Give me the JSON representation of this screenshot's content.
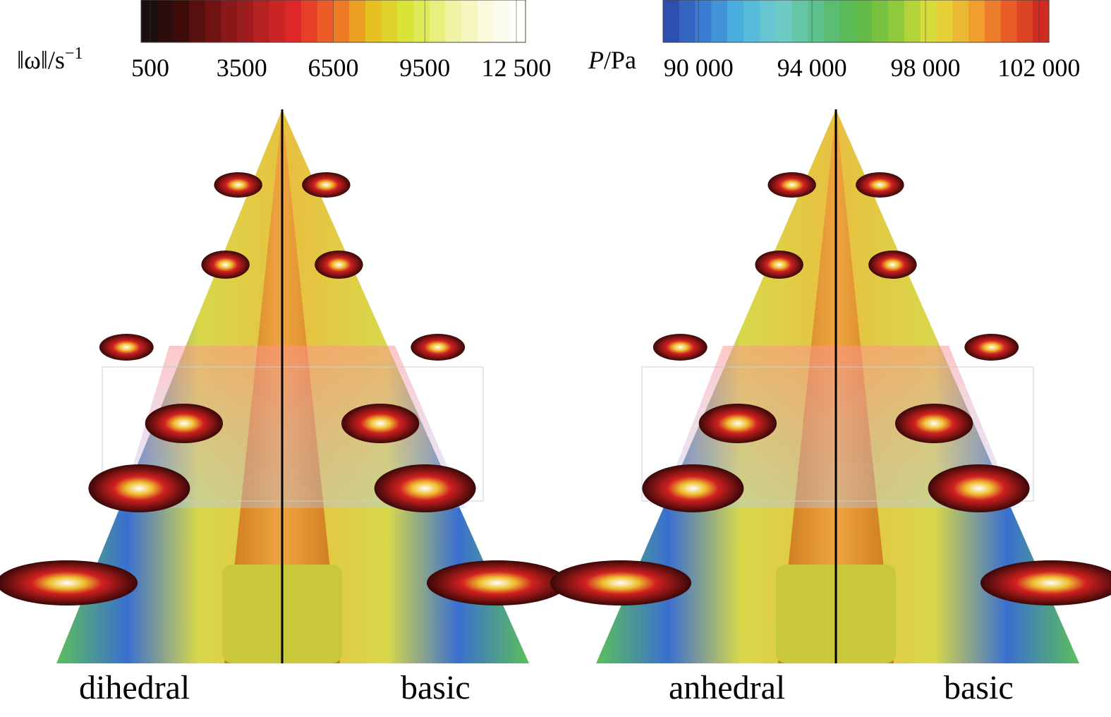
{
  "colorbars": [
    {
      "label": {
        "prefix": "‖ω‖/s",
        "exponent": "−1"
      },
      "range": [
        200,
        12800
      ],
      "colors": [
        "#111111",
        "#3a0a0a",
        "#7a1414",
        "#b02020",
        "#e02828",
        "#f06a28",
        "#e6c020",
        "#d8e83a",
        "#eef29a",
        "#fafae0",
        "#ffffff"
      ],
      "ticks": [
        500,
        3500,
        6500,
        9500,
        {
          "value": 12500,
          "label": "12 500"
        }
      ]
    },
    {
      "label": {
        "symbol": "P",
        "unit": "/Pa"
      },
      "range": [
        88750,
        102350
      ],
      "colors": [
        "#2a44a8",
        "#3a78d0",
        "#4cb6e0",
        "#70cccc",
        "#5cc08a",
        "#5ab84a",
        "#8cc83c",
        "#e0e03a",
        "#f0a830",
        "#e85a28",
        "#c81e1e"
      ],
      "ticks": [
        {
          "value": 90000,
          "label": "90 000"
        },
        {
          "value": 94000,
          "label": "94 000"
        },
        {
          "value": 98000,
          "label": "98 000"
        },
        {
          "value": 102000,
          "label": "102 000"
        }
      ]
    }
  ],
  "panels": [
    {
      "left_label": "dihedral",
      "right_label": "basic"
    },
    {
      "left_label": "anhedral",
      "right_label": "basic"
    }
  ]
}
